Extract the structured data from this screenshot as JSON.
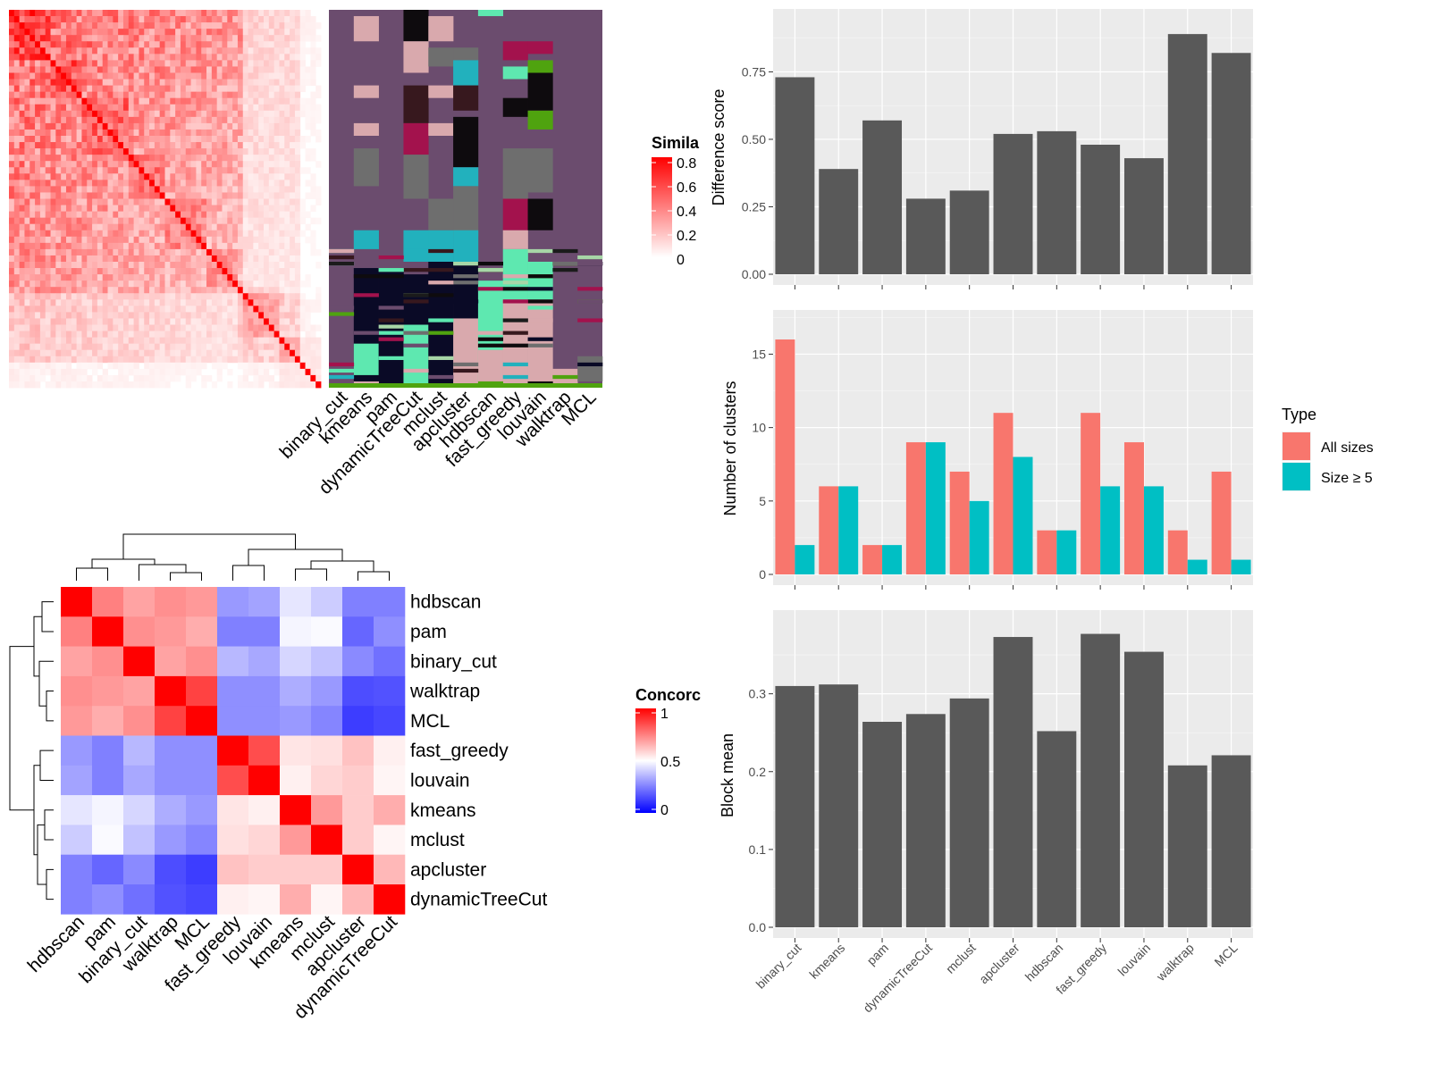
{
  "chart_data": [
    {
      "type": "heatmap",
      "panel": "cell-similarity-heatmap",
      "legend_title": "Similarity",
      "legend_title_visible": "Simila",
      "legend_ticks": [
        "0.8",
        "0.6",
        "0.4",
        "0.2",
        "0"
      ],
      "color_low": "#ffffff",
      "color_high": "#ff0000",
      "n_cells": 60
    },
    {
      "type": "heatmap",
      "panel": "cluster-assignment-annotation",
      "columns": [
        "binary_cut",
        "kmeans",
        "pam",
        "dynamicTreeCut",
        "mclust",
        "apcluster",
        "hdbscan",
        "fast_greedy",
        "louvain",
        "walktrap",
        "MCL"
      ],
      "palette": [
        "#6b4c6e",
        "#d9a9ad",
        "#0e0b0e",
        "#22b1bd",
        "#6e6e6e",
        "#5ee8b0",
        "#a7d6a7",
        "#1b1b1b",
        "#a3124d",
        "#0a0a26",
        "#37181e",
        "#4fa30f"
      ]
    },
    {
      "type": "heatmap",
      "panel": "concordance-heatmap",
      "legend_title": "Concordance",
      "legend_title_visible": "Concorc",
      "legend_ticks": [
        "1",
        "0.5",
        "0"
      ],
      "color_low": "#0000ff",
      "color_mid": "#ffffff",
      "color_high": "#ff0000",
      "rows": [
        "hdbscan",
        "pam",
        "binary_cut",
        "walktrap",
        "MCL",
        "fast_greedy",
        "louvain",
        "kmeans",
        "mclust",
        "apcluster",
        "dynamicTreeCut"
      ],
      "cols": [
        "hdbscan",
        "pam",
        "binary_cut",
        "walktrap",
        "MCL",
        "fast_greedy",
        "louvain",
        "kmeans",
        "mclust",
        "apcluster",
        "dynamicTreeCut"
      ],
      "values": [
        [
          1.0,
          0.75,
          0.68,
          0.72,
          0.7,
          0.3,
          0.32,
          0.45,
          0.4,
          0.25,
          0.25
        ],
        [
          0.75,
          1.0,
          0.72,
          0.7,
          0.66,
          0.25,
          0.25,
          0.48,
          0.49,
          0.2,
          0.28
        ],
        [
          0.68,
          0.72,
          1.0,
          0.68,
          0.72,
          0.36,
          0.33,
          0.42,
          0.38,
          0.27,
          0.22
        ],
        [
          0.72,
          0.7,
          0.68,
          1.0,
          0.87,
          0.28,
          0.28,
          0.34,
          0.3,
          0.15,
          0.16
        ],
        [
          0.7,
          0.66,
          0.72,
          0.87,
          1.0,
          0.28,
          0.28,
          0.3,
          0.26,
          0.12,
          0.14
        ],
        [
          0.3,
          0.25,
          0.36,
          0.28,
          0.28,
          1.0,
          0.85,
          0.55,
          0.56,
          0.62,
          0.53
        ],
        [
          0.32,
          0.25,
          0.33,
          0.28,
          0.28,
          0.85,
          1.0,
          0.53,
          0.58,
          0.6,
          0.52
        ],
        [
          0.45,
          0.48,
          0.42,
          0.34,
          0.3,
          0.55,
          0.53,
          1.0,
          0.7,
          0.6,
          0.66
        ],
        [
          0.4,
          0.49,
          0.38,
          0.3,
          0.26,
          0.56,
          0.58,
          0.7,
          1.0,
          0.6,
          0.52
        ],
        [
          0.25,
          0.2,
          0.27,
          0.15,
          0.12,
          0.62,
          0.6,
          0.6,
          0.6,
          1.0,
          0.64
        ],
        [
          0.25,
          0.28,
          0.22,
          0.16,
          0.14,
          0.53,
          0.52,
          0.66,
          0.52,
          0.64,
          1.0
        ]
      ]
    },
    {
      "type": "bar",
      "panel": "difference-score",
      "categories": [
        "binary_cut",
        "kmeans",
        "pam",
        "dynamicTreeCut",
        "mclust",
        "apcluster",
        "hdbscan",
        "fast_greedy",
        "louvain",
        "walktrap",
        "MCL"
      ],
      "values": [
        0.73,
        0.39,
        0.57,
        0.28,
        0.31,
        0.52,
        0.53,
        0.48,
        0.43,
        0.89,
        0.82
      ],
      "ylabel": "Difference score",
      "ylim": [
        0,
        0.95
      ],
      "yticks": [
        "0.00",
        "0.25",
        "0.50",
        "0.75"
      ],
      "color": "#595959"
    },
    {
      "type": "bar",
      "panel": "number-of-clusters",
      "categories": [
        "binary_cut",
        "kmeans",
        "pam",
        "dynamicTreeCut",
        "mclust",
        "apcluster",
        "hdbscan",
        "fast_greedy",
        "louvain",
        "walktrap",
        "MCL"
      ],
      "series": [
        {
          "name": "All sizes",
          "color": "#f8766d",
          "values": [
            16,
            6,
            2,
            9,
            7,
            11,
            3,
            11,
            9,
            3,
            7
          ]
        },
        {
          "name": "Size ≥ 5",
          "color": "#00bfc4",
          "values": [
            2,
            6,
            2,
            9,
            5,
            8,
            3,
            6,
            6,
            1,
            1
          ]
        }
      ],
      "ylabel": "Number of clusters",
      "ylim": [
        0,
        17.4
      ],
      "yticks": [
        "0",
        "5",
        "10",
        "15"
      ],
      "legend_title": "Type",
      "legend_position": "right"
    },
    {
      "type": "bar",
      "panel": "block-mean",
      "categories": [
        "binary_cut",
        "kmeans",
        "pam",
        "dynamicTreeCut",
        "mclust",
        "apcluster",
        "hdbscan",
        "fast_greedy",
        "louvain",
        "walktrap",
        "MCL"
      ],
      "values": [
        0.31,
        0.312,
        0.264,
        0.274,
        0.294,
        0.373,
        0.252,
        0.377,
        0.354,
        0.208,
        0.221
      ],
      "ylabel": "Block mean",
      "ylim": [
        0,
        0.396
      ],
      "yticks": [
        "0.0",
        "0.1",
        "0.2",
        "0.3"
      ],
      "color": "#595959"
    }
  ]
}
